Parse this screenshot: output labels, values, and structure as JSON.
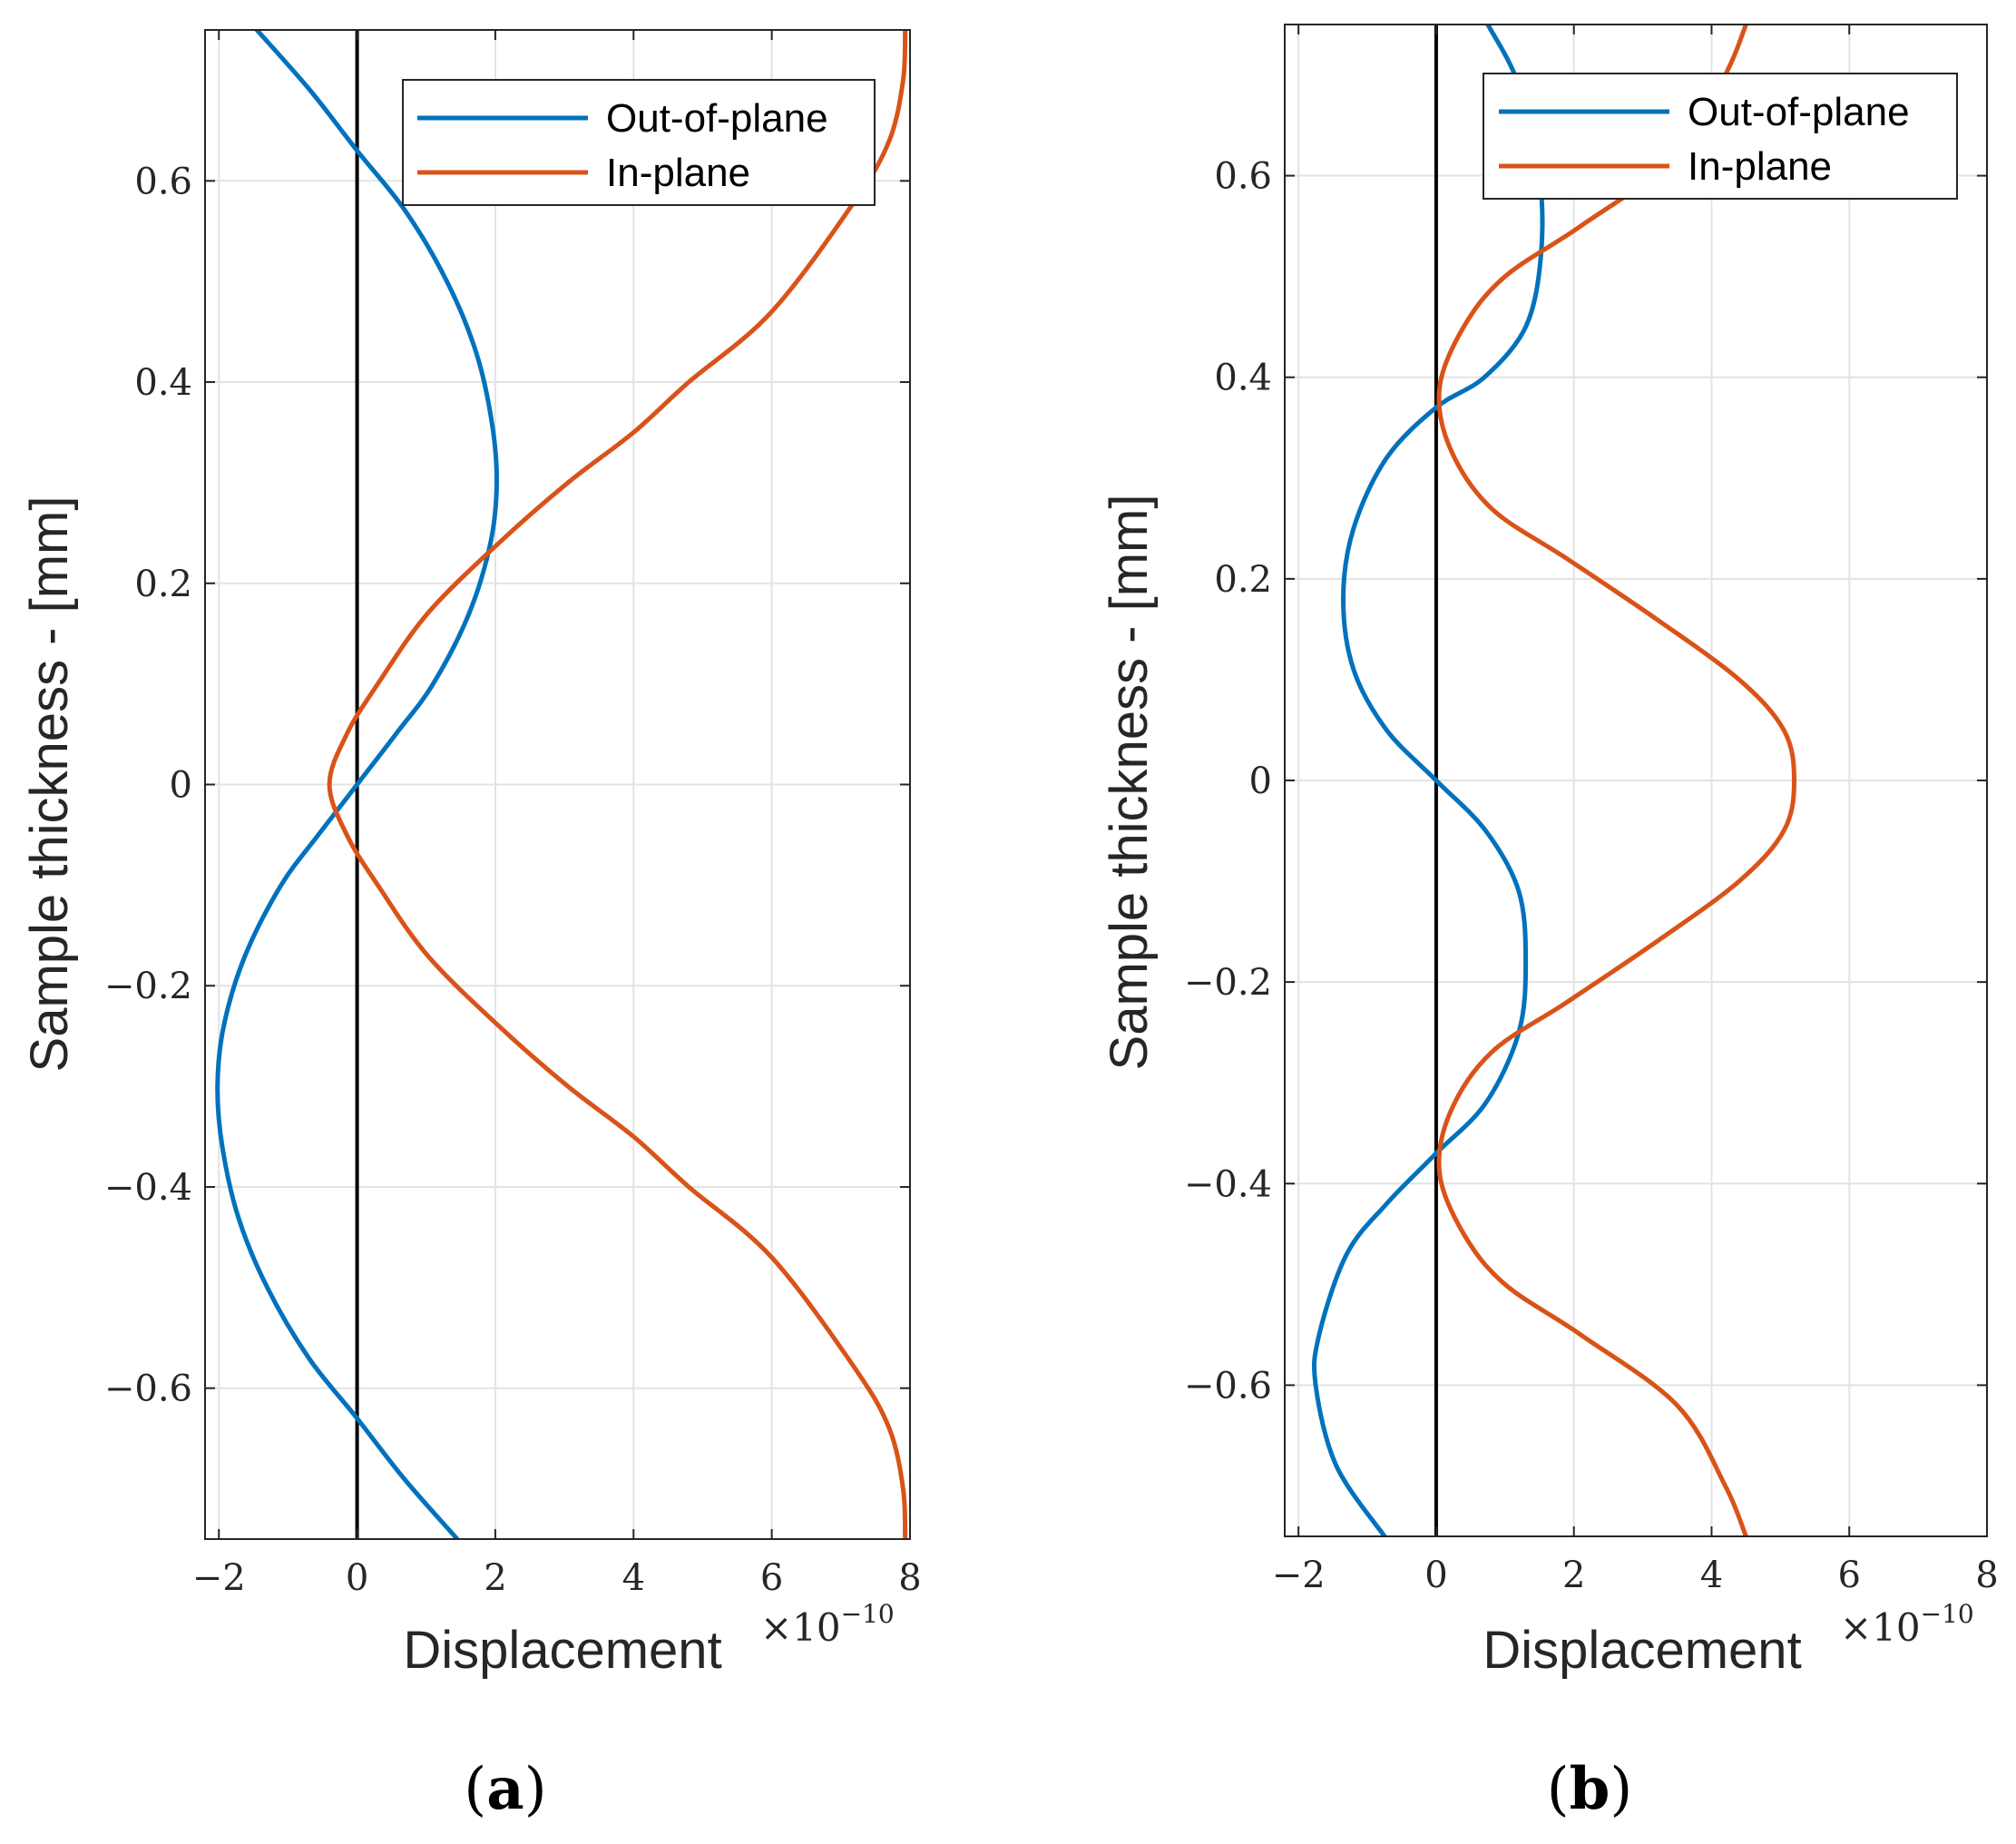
{
  "colors": {
    "out_of_plane": "#0072BD",
    "in_plane": "#D95319",
    "grid": "#e3e3e3",
    "axis": "#262626"
  },
  "chart_data": [
    {
      "type": "line",
      "panel_label": "a",
      "xlabel": "Displacement",
      "x_multiplier": "×10",
      "x_multiplier_exponent": "−10",
      "ylabel": "Sample thickness - [mm]",
      "xlim": [
        -2.2,
        8
      ],
      "ylim": [
        -0.75,
        0.75
      ],
      "xticks": [
        -2,
        0,
        2,
        4,
        6,
        8
      ],
      "xtick_labels": [
        "−2",
        "0",
        "2",
        "4",
        "6",
        "8"
      ],
      "yticks": [
        -0.6,
        -0.4,
        -0.2,
        0,
        0.2,
        0.4,
        0.6
      ],
      "ytick_labels": [
        "−0.6",
        "−0.4",
        "−0.2",
        "0",
        "0.2",
        "0.4",
        "0.6"
      ],
      "grid": true,
      "zero_line_x": 0,
      "legend": {
        "position": "top-right",
        "entries": [
          "Out-of-plane",
          "In-plane"
        ]
      },
      "series": [
        {
          "name": "Out-of-plane",
          "x": [
            -1.45,
            -0.68,
            0.0,
            0.7,
            1.3,
            1.72,
            1.95,
            2.02,
            1.93,
            1.62,
            1.1,
            0.56,
            0.0,
            -0.56,
            -1.1,
            -1.62,
            -1.93,
            -2.02,
            -1.95,
            -1.72,
            -1.3,
            -0.7,
            0.0,
            0.68,
            1.45
          ],
          "y": [
            0.75,
            0.69,
            0.63,
            0.57,
            0.5,
            0.43,
            0.36,
            0.3,
            0.24,
            0.17,
            0.1,
            0.05,
            0.0,
            -0.05,
            -0.1,
            -0.17,
            -0.24,
            -0.3,
            -0.36,
            -0.43,
            -0.5,
            -0.57,
            -0.63,
            -0.69,
            -0.75
          ]
        },
        {
          "name": "In-plane",
          "x": [
            7.93,
            7.9,
            7.7,
            7.2,
            6.0,
            4.8,
            4.0,
            3.05,
            2.05,
            1.02,
            0.3,
            -0.15,
            -0.4,
            -0.15,
            0.3,
            1.02,
            2.05,
            3.05,
            4.0,
            4.8,
            6.0,
            7.2,
            7.7,
            7.9,
            7.93
          ],
          "y": [
            0.75,
            0.7,
            0.64,
            0.58,
            0.47,
            0.4,
            0.35,
            0.3,
            0.24,
            0.17,
            0.1,
            0.05,
            0.0,
            -0.05,
            -0.1,
            -0.17,
            -0.24,
            -0.3,
            -0.35,
            -0.4,
            -0.47,
            -0.58,
            -0.64,
            -0.7,
            -0.75
          ]
        }
      ]
    },
    {
      "type": "line",
      "panel_label": "b",
      "xlabel": "Displacement",
      "x_multiplier": "×10",
      "x_multiplier_exponent": "−10",
      "ylabel": "Sample thickness - [mm]",
      "xlim": [
        -2.2,
        8
      ],
      "ylim": [
        -0.75,
        0.75
      ],
      "xticks": [
        -2,
        0,
        2,
        4,
        6,
        8
      ],
      "xtick_labels": [
        "−2",
        "0",
        "2",
        "4",
        "6",
        "8"
      ],
      "yticks": [
        -0.6,
        -0.4,
        -0.2,
        0,
        0.2,
        0.4,
        0.6
      ],
      "ytick_labels": [
        "−0.6",
        "−0.4",
        "−0.2",
        "0",
        "0.2",
        "0.4",
        "0.6"
      ],
      "grid": true,
      "zero_line_x": 0,
      "legend": {
        "position": "top-right",
        "entries": [
          "Out-of-plane",
          "In-plane"
        ]
      },
      "series": [
        {
          "name": "Out-of-plane",
          "x": [
            0.75,
            1.2,
            1.5,
            1.52,
            1.3,
            0.7,
            0.0,
            -0.72,
            -1.2,
            -1.35,
            -1.2,
            -0.72,
            0.0,
            0.72,
            1.2,
            1.3,
            1.2,
            0.72,
            0.0,
            -0.72,
            -1.3,
            -1.7,
            -1.75,
            -1.45,
            -0.75
          ],
          "y": [
            0.75,
            0.69,
            0.6,
            0.52,
            0.45,
            0.4,
            0.37,
            0.32,
            0.25,
            0.18,
            0.11,
            0.05,
            0.0,
            -0.05,
            -0.11,
            -0.18,
            -0.25,
            -0.32,
            -0.37,
            -0.42,
            -0.47,
            -0.55,
            -0.6,
            -0.68,
            -0.75
          ]
        },
        {
          "name": "In-plane",
          "x": [
            4.5,
            4.2,
            3.5,
            2.1,
            1.0,
            0.4,
            0.05,
            0.2,
            0.8,
            1.9,
            3.2,
            4.4,
            5.05,
            5.2,
            5.05,
            4.4,
            3.2,
            1.9,
            0.8,
            0.2,
            0.05,
            0.4,
            1.0,
            2.1,
            3.5,
            4.2,
            4.5
          ],
          "y": [
            0.75,
            0.7,
            0.62,
            0.55,
            0.5,
            0.45,
            0.39,
            0.33,
            0.27,
            0.22,
            0.16,
            0.1,
            0.05,
            0.0,
            -0.05,
            -0.1,
            -0.16,
            -0.22,
            -0.27,
            -0.33,
            -0.39,
            -0.45,
            -0.5,
            -0.55,
            -0.62,
            -0.7,
            -0.75
          ]
        }
      ]
    }
  ]
}
